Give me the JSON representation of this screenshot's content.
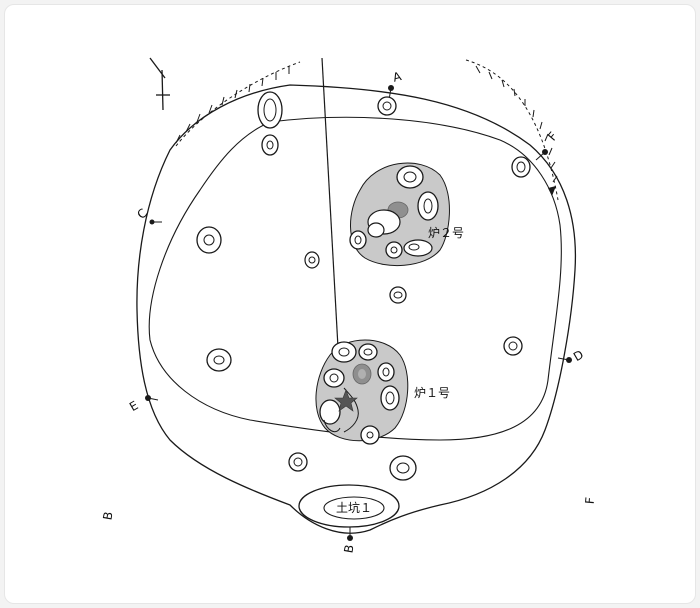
{
  "labels": {
    "A": "A",
    "B": "B",
    "C": "C",
    "D": "D",
    "E": "E",
    "F": "F",
    "hearth1": "炉１号",
    "hearth2": "炉２号",
    "pit1": "土坑１"
  },
  "colors": {
    "line": "#1a1a1a",
    "hearth_fill": "#c9c9c9",
    "burnt_fill": "#8f8f8f",
    "star": "#555555"
  }
}
